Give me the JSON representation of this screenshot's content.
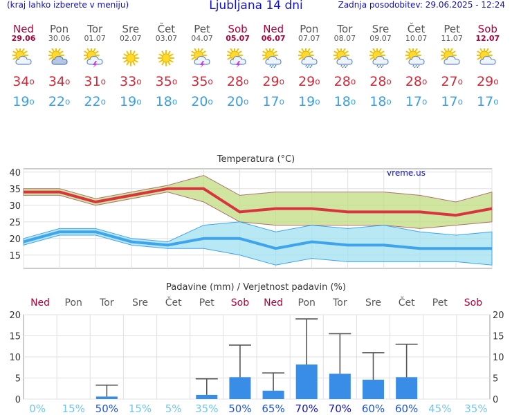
{
  "header": {
    "left_note": "(kraj lahko izberete v meniju)",
    "title": "Ljubljana 14 dni",
    "updated": "Zadnja posodobitev: 29.06.2025 - 12:24"
  },
  "days": [
    {
      "name": "Ned",
      "date": "29.06",
      "weekend": true,
      "icon": "sun-cloud-icon",
      "tmax": "34",
      "tmin": "19"
    },
    {
      "name": "Pon",
      "date": "30.06",
      "weekend": false,
      "icon": "cloudy-sun-icon",
      "tmax": "34",
      "tmin": "22"
    },
    {
      "name": "Tor",
      "date": "01.07",
      "weekend": false,
      "icon": "sun-cloud-storm-icon",
      "tmax": "31",
      "tmin": "22"
    },
    {
      "name": "Sre",
      "date": "02.07",
      "weekend": false,
      "icon": "sun-icon",
      "tmax": "33",
      "tmin": "19"
    },
    {
      "name": "Čet",
      "date": "03.07",
      "weekend": false,
      "icon": "sun-icon",
      "tmax": "35",
      "tmin": "18"
    },
    {
      "name": "Pet",
      "date": "04.07",
      "weekend": false,
      "icon": "sun-cloud-storm-icon",
      "tmax": "35",
      "tmin": "20"
    },
    {
      "name": "Sob",
      "date": "05.07",
      "weekend": true,
      "icon": "sun-cloud-storm-icon",
      "tmax": "28",
      "tmin": "20"
    },
    {
      "name": "Ned",
      "date": "06.07",
      "weekend": true,
      "icon": "sun-cloud-rain-icon",
      "tmax": "29",
      "tmin": "17"
    },
    {
      "name": "Pon",
      "date": "07.07",
      "weekend": false,
      "icon": "sun-cloud-rain-icon",
      "tmax": "29",
      "tmin": "19"
    },
    {
      "name": "Tor",
      "date": "08.07",
      "weekend": false,
      "icon": "sun-cloud-rain-icon",
      "tmax": "28",
      "tmin": "18"
    },
    {
      "name": "Sre",
      "date": "09.07",
      "weekend": false,
      "icon": "sun-cloud-rain-icon",
      "tmax": "28",
      "tmin": "18"
    },
    {
      "name": "Čet",
      "date": "10.07",
      "weekend": false,
      "icon": "sun-cloud-rain-icon",
      "tmax": "28",
      "tmin": "17"
    },
    {
      "name": "Pet",
      "date": "11.07",
      "weekend": false,
      "icon": "sun-cloud-icon",
      "tmax": "27",
      "tmin": "17"
    },
    {
      "name": "Sob",
      "date": "12.07",
      "weekend": true,
      "icon": "sun-cloud-icon",
      "tmax": "29",
      "tmin": "17"
    }
  ],
  "chart_data": [
    {
      "type": "line",
      "title": "Temperatura (°C)",
      "watermark": "vreme.us",
      "ylim": [
        11,
        41
      ],
      "yticks": [
        15,
        20,
        25,
        30,
        35,
        40
      ],
      "grid": true,
      "series": [
        {
          "name": "max",
          "color": "#d8343f",
          "values": [
            34,
            34,
            31,
            33,
            35,
            35,
            28,
            29,
            29,
            28,
            28,
            28,
            27,
            29
          ]
        },
        {
          "name": "max_high",
          "color": "#c0dc80",
          "values": [
            35,
            35,
            32,
            34,
            36,
            39,
            33,
            34,
            34,
            34,
            34,
            33,
            31,
            34
          ]
        },
        {
          "name": "max_low",
          "color": "#c0dc80",
          "values": [
            33,
            33,
            30,
            32,
            34,
            31,
            25,
            24,
            24,
            24,
            24,
            23,
            24,
            25
          ]
        },
        {
          "name": "min",
          "color": "#40a4ec",
          "values": [
            19,
            22,
            22,
            19,
            18,
            20,
            20,
            17,
            19,
            18,
            18,
            17,
            17,
            17
          ]
        },
        {
          "name": "min_high",
          "color": "#9fe0f0",
          "values": [
            20,
            23,
            23,
            20,
            19,
            24,
            25,
            22,
            24,
            23,
            24,
            22,
            21,
            22
          ]
        },
        {
          "name": "min_low",
          "color": "#9fe0f0",
          "values": [
            18,
            21,
            21,
            18,
            17,
            17,
            15,
            12,
            14,
            13,
            13,
            13,
            13,
            12
          ]
        }
      ]
    },
    {
      "type": "bar",
      "title": "Padavine (mm) / Verjetnost padavin (%)",
      "ylim": [
        0,
        20
      ],
      "yticks": [
        0,
        5,
        10,
        15,
        20
      ],
      "grid": true,
      "categories": [
        "Ned",
        "Pon",
        "Tor",
        "Sre",
        "Čet",
        "Pet",
        "Sob",
        "Ned",
        "Pon",
        "Tor",
        "Sre",
        "Čet",
        "Pet",
        "Sob"
      ],
      "weekend": [
        true,
        false,
        false,
        false,
        false,
        false,
        true,
        true,
        false,
        false,
        false,
        false,
        false,
        true
      ],
      "values": [
        0,
        0,
        0.6,
        0,
        0,
        1,
        5.2,
        2,
        8.2,
        6,
        4.6,
        5.2,
        0,
        0
      ],
      "error_high": [
        null,
        null,
        3.3,
        null,
        null,
        4.8,
        12.8,
        6.2,
        19,
        15.5,
        11,
        13,
        null,
        null
      ],
      "probability": [
        "0%",
        "15%",
        "50%",
        "15%",
        "5%",
        "35%",
        "50%",
        "65%",
        "70%",
        "70%",
        "60%",
        "60%",
        "45%",
        "35%"
      ],
      "bar_color": "#3a8de6"
    }
  ]
}
